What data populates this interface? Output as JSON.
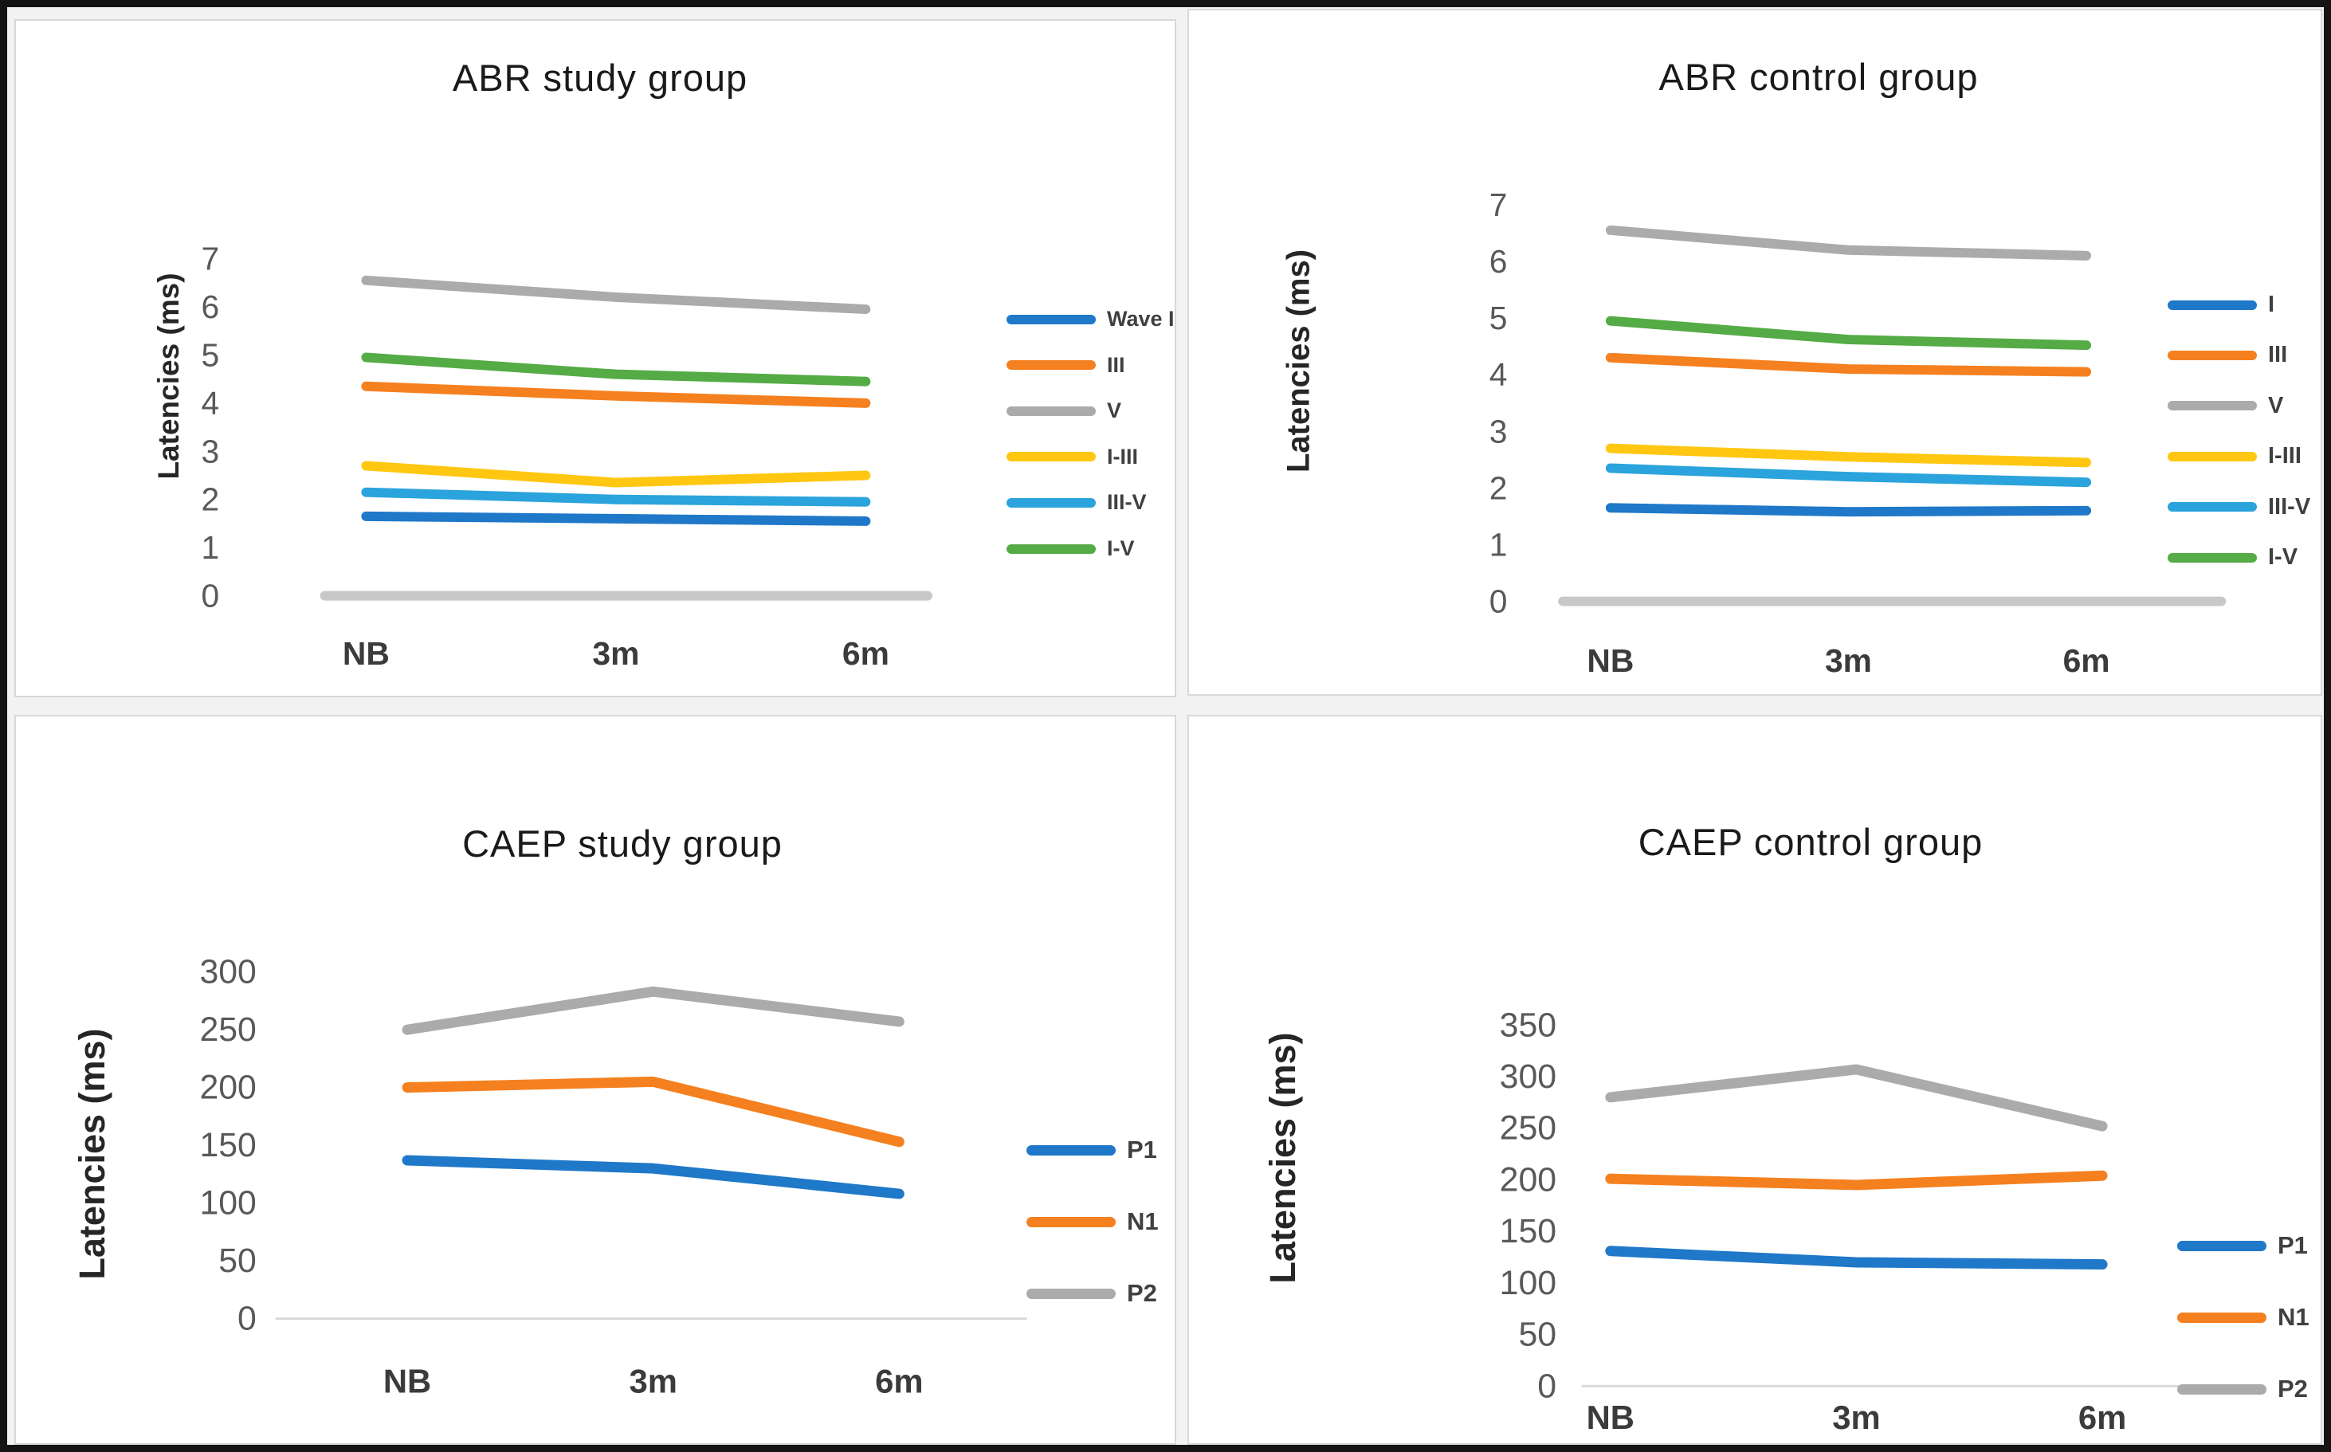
{
  "figure_title": "",
  "palette": {
    "blue": "#1F78C8",
    "orange": "#F5801F",
    "gray": "#ABABAB",
    "yellow": "#FFC712",
    "light_blue": "#2BA3DC",
    "green": "#55AB46",
    "axis_tick_color": "#595959",
    "x_label_color": "#3b3b3b",
    "abr_baseline_color": "#c8c8c8",
    "caep_baseline_color": "#d9d9d9"
  },
  "chart_data": [
    {
      "type": "line",
      "title": "ABR study group",
      "ylabel": "Latencies (ms)",
      "xlabel": "",
      "categories": [
        "NB",
        "3m",
        "6m"
      ],
      "ylim": [
        0,
        7
      ],
      "ytick_step": 1,
      "grid": false,
      "legend_position": "right",
      "series": [
        {
          "name": "Wave I",
          "color": "#1F78C8",
          "values": [
            1.65,
            1.6,
            1.55
          ]
        },
        {
          "name": "III",
          "color": "#F5801F",
          "values": [
            4.35,
            4.15,
            4.0
          ]
        },
        {
          "name": "V",
          "color": "#ABABAB",
          "values": [
            6.55,
            6.2,
            5.95
          ]
        },
        {
          "name": "I-III",
          "color": "#FFC712",
          "values": [
            2.7,
            2.35,
            2.5
          ]
        },
        {
          "name": "III-V",
          "color": "#2BA3DC",
          "values": [
            2.15,
            2.0,
            1.95
          ]
        },
        {
          "name": "I-V",
          "color": "#55AB46",
          "values": [
            4.95,
            4.6,
            4.45
          ]
        }
      ]
    },
    {
      "type": "line",
      "title": "ABR control group",
      "ylabel": "Latencies (ms)",
      "xlabel": "",
      "categories": [
        "NB",
        "3m",
        "6m"
      ],
      "ylim": [
        0,
        7
      ],
      "ytick_step": 1,
      "grid": false,
      "legend_position": "right",
      "series": [
        {
          "name": "I",
          "color": "#1F78C8",
          "values": [
            1.65,
            1.58,
            1.6
          ]
        },
        {
          "name": "III",
          "color": "#F5801F",
          "values": [
            4.3,
            4.1,
            4.05
          ]
        },
        {
          "name": "V",
          "color": "#ABABAB",
          "values": [
            6.55,
            6.2,
            6.1
          ]
        },
        {
          "name": "I-III",
          "color": "#FFC712",
          "values": [
            2.7,
            2.55,
            2.45
          ]
        },
        {
          "name": "III-V",
          "color": "#2BA3DC",
          "values": [
            2.35,
            2.2,
            2.1
          ]
        },
        {
          "name": "I-V",
          "color": "#55AB46",
          "values": [
            4.95,
            4.62,
            4.52
          ]
        }
      ]
    },
    {
      "type": "line",
      "title": "CAEP study group",
      "ylabel": "Latencies (ms)",
      "xlabel": "",
      "categories": [
        "NB",
        "3m",
        "6m"
      ],
      "ylim": [
        0,
        300
      ],
      "ytick_step": 50,
      "grid": false,
      "legend_position": "right",
      "series": [
        {
          "name": "P1",
          "color": "#1F78C8",
          "values": [
            137,
            130,
            108
          ]
        },
        {
          "name": "N1",
          "color": "#F5801F",
          "values": [
            200,
            205,
            153
          ]
        },
        {
          "name": "P2",
          "color": "#ABABAB",
          "values": [
            250,
            283,
            257
          ]
        }
      ]
    },
    {
      "type": "line",
      "title": "CAEP control group",
      "ylabel": "Latencies (ms)",
      "xlabel": "",
      "categories": [
        "NB",
        "3m",
        "6m"
      ],
      "ylim": [
        0,
        350
      ],
      "ytick_step": 50,
      "grid": false,
      "legend_position": "right",
      "series": [
        {
          "name": "P1",
          "color": "#1F78C8",
          "values": [
            131,
            120,
            118
          ]
        },
        {
          "name": "N1",
          "color": "#F5801F",
          "values": [
            201,
            195,
            204
          ]
        },
        {
          "name": "P2",
          "color": "#ABABAB",
          "values": [
            280,
            307,
            252
          ]
        }
      ]
    }
  ]
}
